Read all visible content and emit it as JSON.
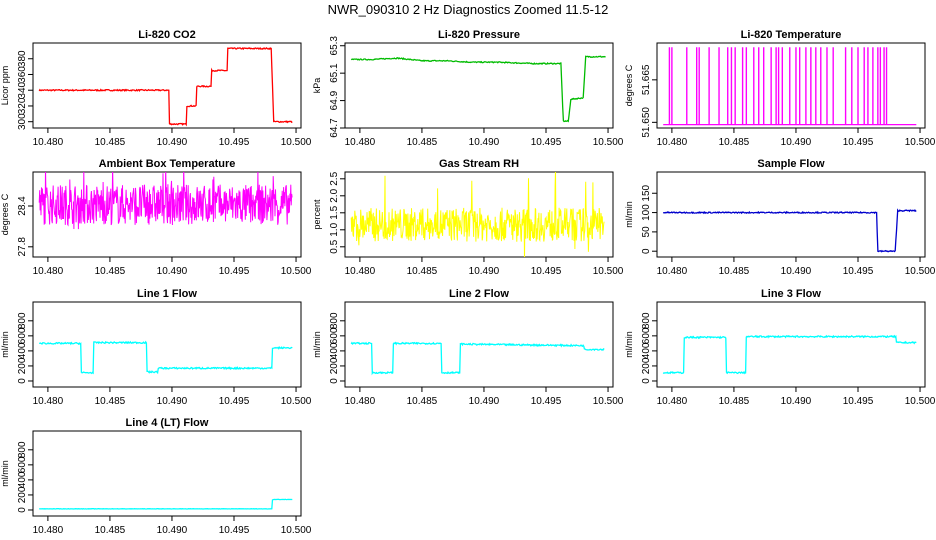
{
  "figure": {
    "title": "NWR_090310  2 Hz Diagnostics Zoomed 11.5-12"
  },
  "chart_data": [
    {
      "id": "co2",
      "type": "line",
      "title": "Li-820 CO2",
      "ylabel": "Licor ppm",
      "color": "#ff0000",
      "xlim": [
        10.4788,
        10.5004
      ],
      "ylim": [
        292,
        400
      ],
      "xticks": [
        10.48,
        10.485,
        10.49,
        10.495,
        10.5
      ],
      "xtick_labels": [
        "10.480",
        "10.485",
        "10.490",
        "10.495",
        "10.500"
      ],
      "yticks": [
        300,
        320,
        340,
        360,
        380
      ],
      "ytick_labels": [
        "300",
        "320",
        "340",
        "360",
        "380"
      ],
      "series": [
        {
          "values": [
            [
              10.4793,
              340
            ],
            [
              10.4898,
              340
            ],
            [
              10.4898,
              297
            ],
            [
              10.4912,
              297
            ],
            [
              10.4912,
              320
            ],
            [
              10.492,
              320
            ],
            [
              10.492,
              345
            ],
            [
              10.4932,
              345
            ],
            [
              10.4932,
              365
            ],
            [
              10.4945,
              365
            ],
            [
              10.4945,
              393
            ],
            [
              10.4962,
              393
            ],
            [
              10.498,
              393
            ],
            [
              10.4982,
              300
            ],
            [
              10.4997,
              300
            ]
          ],
          "noise": 0.8
        }
      ]
    },
    {
      "id": "pressure",
      "type": "line",
      "title": "Li-820 Pressure",
      "ylabel": "kPa",
      "color": "#00bb00",
      "xlim": [
        10.4788,
        10.5004
      ],
      "ylim": [
        64.7,
        65.32
      ],
      "xticks": [
        10.48,
        10.485,
        10.49,
        10.495,
        10.5
      ],
      "xtick_labels": [
        "10.480",
        "10.485",
        "10.490",
        "10.495",
        "10.500"
      ],
      "yticks": [
        64.7,
        64.9,
        65.1,
        65.3
      ],
      "ytick_labels": [
        "64.7",
        "64.9",
        "65.1",
        "65.3"
      ],
      "series": [
        {
          "values": [
            [
              10.4793,
              65.2
            ],
            [
              10.481,
              65.2
            ],
            [
              10.483,
              65.21
            ],
            [
              10.485,
              65.19
            ],
            [
              10.487,
              65.19
            ],
            [
              10.489,
              65.18
            ],
            [
              10.491,
              65.18
            ],
            [
              10.494,
              65.17
            ],
            [
              10.4962,
              65.17
            ],
            [
              10.4964,
              64.75
            ],
            [
              10.4968,
              64.75
            ],
            [
              10.497,
              64.91
            ],
            [
              10.498,
              64.92
            ],
            [
              10.4982,
              65.22
            ],
            [
              10.4998,
              65.22
            ]
          ],
          "noise": 0.004
        }
      ]
    },
    {
      "id": "temperature",
      "type": "spikes",
      "title": "Li-820 Temperature",
      "ylabel": "degrees C",
      "color": "#ff00ff",
      "xlim": [
        10.4788,
        10.5004
      ],
      "ylim": [
        51.648,
        51.678
      ],
      "xticks": [
        10.48,
        10.485,
        10.49,
        10.495,
        10.5
      ],
      "xtick_labels": [
        "10.480",
        "10.485",
        "10.490",
        "10.495",
        "10.500"
      ],
      "yticks": [
        51.65,
        51.665
      ],
      "ytick_labels": [
        "51.650",
        "51.665"
      ],
      "baseline": 51.6492,
      "spike_top": 51.6765,
      "spike_x": [
        10.4798,
        10.48,
        10.4812,
        10.482,
        10.4822,
        10.483,
        10.4838,
        10.4845,
        10.4848,
        10.4851,
        10.4857,
        10.486,
        10.4866,
        10.487,
        10.4874,
        10.488,
        10.4884,
        10.4886,
        10.4889,
        10.4895,
        10.49,
        10.4903,
        10.4908,
        10.4912,
        10.4916,
        10.492,
        10.4925,
        10.493,
        10.494,
        10.4945,
        10.495,
        10.4955,
        10.4958,
        10.4962,
        10.4966,
        10.4968,
        10.4971,
        10.4973
      ]
    },
    {
      "id": "box_temp",
      "type": "noise",
      "title": "Ambient Box Temperature",
      "ylabel": "degrees C",
      "color": "#ff00ff",
      "xlim": [
        10.4788,
        10.5004
      ],
      "ylim": [
        27.65,
        28.9
      ],
      "xticks": [
        10.48,
        10.485,
        10.49,
        10.495,
        10.5
      ],
      "xtick_labels": [
        "10.480",
        "10.485",
        "10.490",
        "10.495",
        "10.500"
      ],
      "yticks": [
        27.8,
        28.4
      ],
      "ytick_labels": [
        "27.8",
        "28.4"
      ],
      "x_start": 10.4793,
      "x_end": 10.4997,
      "mean": 28.42,
      "amplitude": 0.3,
      "outliers": 0.5
    },
    {
      "id": "rh",
      "type": "noise",
      "title": "Gas Stream RH",
      "ylabel": "percent",
      "color": "#ffff00",
      "xlim": [
        10.4788,
        10.5004
      ],
      "ylim": [
        0.2,
        2.7
      ],
      "xticks": [
        10.48,
        10.485,
        10.49,
        10.495,
        10.5
      ],
      "xtick_labels": [
        "10.480",
        "10.485",
        "10.490",
        "10.495",
        "10.500"
      ],
      "yticks": [
        0.5,
        1.0,
        1.5,
        2.0,
        2.5
      ],
      "ytick_labels": [
        "0.5",
        "1.0",
        "1.5",
        "2.0",
        "2.5"
      ],
      "x_start": 10.4793,
      "x_end": 10.4997,
      "mean": 1.15,
      "amplitude": 0.5,
      "outliers": 1.4
    },
    {
      "id": "sample_flow",
      "type": "line",
      "title": "Sample Flow",
      "ylabel": "ml/min",
      "color": "#0000cc",
      "xlim": [
        10.4788,
        10.5004
      ],
      "ylim": [
        -15,
        205
      ],
      "xticks": [
        10.48,
        10.485,
        10.49,
        10.495,
        10.5
      ],
      "xtick_labels": [
        "10.480",
        "10.485",
        "10.490",
        "10.495",
        "10.500"
      ],
      "yticks": [
        0,
        50,
        100,
        150
      ],
      "ytick_labels": [
        "0",
        "50",
        "100",
        "150"
      ],
      "series": [
        {
          "values": [
            [
              10.4793,
              100
            ],
            [
              10.4965,
              100
            ],
            [
              10.4966,
              0
            ],
            [
              10.498,
              0
            ],
            [
              10.4982,
              105
            ],
            [
              10.4997,
              105
            ]
          ],
          "noise": 1.5
        }
      ]
    },
    {
      "id": "line1",
      "type": "line",
      "title": "Line 1 Flow",
      "ylabel": "ml/min",
      "color": "#00ffff",
      "xlim": [
        10.4788,
        10.5004
      ],
      "ylim": [
        -80,
        1050
      ],
      "xticks": [
        10.48,
        10.485,
        10.49,
        10.495,
        10.5
      ],
      "xtick_labels": [
        "10.480",
        "10.485",
        "10.490",
        "10.495",
        "10.500"
      ],
      "yticks": [
        0,
        200,
        400,
        600,
        800
      ],
      "ytick_labels": [
        "0",
        "200",
        "400",
        "600",
        "800"
      ],
      "series": [
        {
          "values": [
            [
              10.4793,
              500
            ],
            [
              10.4827,
              500
            ],
            [
              10.4827,
              110
            ],
            [
              10.4837,
              110
            ],
            [
              10.4837,
              510
            ],
            [
              10.488,
              510
            ],
            [
              10.488,
              120
            ],
            [
              10.4889,
              120
            ],
            [
              10.4889,
              170
            ],
            [
              10.4981,
              170
            ],
            [
              10.4981,
              440
            ],
            [
              10.4997,
              440
            ]
          ],
          "noise": 10
        }
      ]
    },
    {
      "id": "line2",
      "type": "line",
      "title": "Line 2 Flow",
      "ylabel": "ml/min",
      "color": "#00ffff",
      "xlim": [
        10.4788,
        10.5004
      ],
      "ylim": [
        -80,
        1050
      ],
      "xticks": [
        10.48,
        10.485,
        10.49,
        10.495,
        10.5
      ],
      "xtick_labels": [
        "10.480",
        "10.485",
        "10.490",
        "10.495",
        "10.500"
      ],
      "yticks": [
        0,
        200,
        400,
        600,
        800
      ],
      "ytick_labels": [
        "0",
        "200",
        "400",
        "600",
        "800"
      ],
      "series": [
        {
          "values": [
            [
              10.4793,
              500
            ],
            [
              10.481,
              500
            ],
            [
              10.481,
              110
            ],
            [
              10.4827,
              110
            ],
            [
              10.4827,
              500
            ],
            [
              10.4866,
              500
            ],
            [
              10.4866,
              110
            ],
            [
              10.4881,
              110
            ],
            [
              10.4881,
              490
            ],
            [
              10.4981,
              470
            ],
            [
              10.4981,
              420
            ],
            [
              10.4997,
              420
            ]
          ],
          "noise": 10
        }
      ]
    },
    {
      "id": "line3",
      "type": "line",
      "title": "Line 3 Flow",
      "ylabel": "ml/min",
      "color": "#00ffff",
      "xlim": [
        10.4788,
        10.5004
      ],
      "ylim": [
        -80,
        1050
      ],
      "xticks": [
        10.48,
        10.485,
        10.49,
        10.495,
        10.5
      ],
      "xtick_labels": [
        "10.480",
        "10.485",
        "10.490",
        "10.495",
        "10.500"
      ],
      "yticks": [
        0,
        200,
        400,
        600,
        800
      ],
      "ytick_labels": [
        "0",
        "200",
        "400",
        "600",
        "800"
      ],
      "series": [
        {
          "values": [
            [
              10.4793,
              110
            ],
            [
              10.481,
              110
            ],
            [
              10.481,
              580
            ],
            [
              10.4844,
              580
            ],
            [
              10.4844,
              110
            ],
            [
              10.486,
              110
            ],
            [
              10.486,
              590
            ],
            [
              10.4981,
              590
            ],
            [
              10.4981,
              510
            ],
            [
              10.4997,
              510
            ]
          ],
          "noise": 10
        }
      ]
    },
    {
      "id": "line4",
      "type": "line",
      "title": "Line 4 (LT) Flow",
      "ylabel": "ml/min",
      "color": "#00ffff",
      "xlim": [
        10.4788,
        10.5004
      ],
      "ylim": [
        -80,
        1050
      ],
      "xticks": [
        10.48,
        10.485,
        10.49,
        10.495,
        10.5
      ],
      "xtick_labels": [
        "10.480",
        "10.485",
        "10.490",
        "10.495",
        "10.500"
      ],
      "yticks": [
        0,
        200,
        400,
        600,
        800
      ],
      "ytick_labels": [
        "0",
        "200",
        "400",
        "600",
        "800"
      ],
      "series": [
        {
          "values": [
            [
              10.4793,
              15
            ],
            [
              10.4981,
              15
            ],
            [
              10.4981,
              140
            ],
            [
              10.4997,
              140
            ]
          ],
          "noise": 2
        }
      ]
    }
  ]
}
